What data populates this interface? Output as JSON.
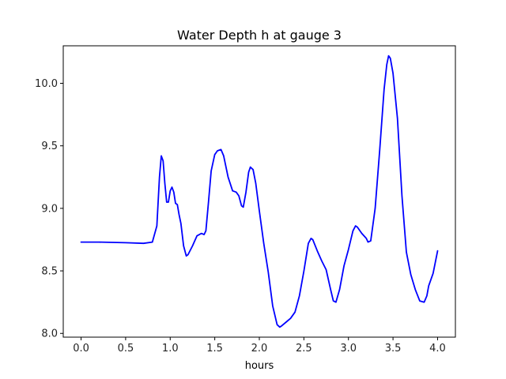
{
  "chart_data": {
    "type": "line",
    "title": "Water Depth h at gauge 3",
    "xlabel": "hours",
    "ylabel": "",
    "xlim": [
      -0.2,
      4.2
    ],
    "ylim": [
      7.97,
      10.3
    ],
    "xticks": [
      0.0,
      0.5,
      1.0,
      1.5,
      2.0,
      2.5,
      3.0,
      3.5,
      4.0
    ],
    "xtick_labels": [
      "0.0",
      "0.5",
      "1.0",
      "1.5",
      "2.0",
      "2.5",
      "3.0",
      "3.5",
      "4.0"
    ],
    "yticks": [
      8.0,
      8.5,
      9.0,
      9.5,
      10.0
    ],
    "ytick_labels": [
      "8.0",
      "8.5",
      "9.0",
      "9.5",
      "10.0"
    ],
    "grid": false,
    "legend": "none",
    "series": [
      {
        "color": "#0000ff",
        "x": [
          0.0,
          0.2,
          0.5,
          0.7,
          0.8,
          0.85,
          0.88,
          0.9,
          0.92,
          0.94,
          0.96,
          0.98,
          1.0,
          1.02,
          1.04,
          1.06,
          1.08,
          1.1,
          1.12,
          1.15,
          1.18,
          1.2,
          1.25,
          1.3,
          1.35,
          1.38,
          1.4,
          1.43,
          1.46,
          1.5,
          1.53,
          1.57,
          1.6,
          1.65,
          1.7,
          1.74,
          1.77,
          1.8,
          1.82,
          1.85,
          1.88,
          1.9,
          1.93,
          1.96,
          2.0,
          2.05,
          2.1,
          2.15,
          2.2,
          2.23,
          2.25,
          2.3,
          2.35,
          2.4,
          2.45,
          2.5,
          2.55,
          2.58,
          2.6,
          2.65,
          2.7,
          2.75,
          2.8,
          2.83,
          2.86,
          2.9,
          2.95,
          3.0,
          3.05,
          3.08,
          3.1,
          3.15,
          3.2,
          3.22,
          3.25,
          3.3,
          3.35,
          3.4,
          3.43,
          3.45,
          3.47,
          3.5,
          3.55,
          3.6,
          3.65,
          3.7,
          3.75,
          3.8,
          3.85,
          3.88,
          3.9,
          3.95,
          4.0
        ],
        "y": [
          8.73,
          8.73,
          8.725,
          8.72,
          8.73,
          8.86,
          9.25,
          9.42,
          9.38,
          9.2,
          9.05,
          9.05,
          9.14,
          9.17,
          9.13,
          9.04,
          9.03,
          8.95,
          8.88,
          8.7,
          8.62,
          8.63,
          8.7,
          8.78,
          8.8,
          8.79,
          8.82,
          9.05,
          9.3,
          9.43,
          9.46,
          9.47,
          9.42,
          9.25,
          9.14,
          9.13,
          9.1,
          9.02,
          9.01,
          9.13,
          9.29,
          9.33,
          9.31,
          9.2,
          8.98,
          8.72,
          8.49,
          8.22,
          8.07,
          8.05,
          8.06,
          8.09,
          8.12,
          8.17,
          8.3,
          8.5,
          8.72,
          8.76,
          8.75,
          8.66,
          8.58,
          8.51,
          8.35,
          8.26,
          8.25,
          8.35,
          8.54,
          8.67,
          8.82,
          8.86,
          8.85,
          8.8,
          8.76,
          8.73,
          8.74,
          9.0,
          9.46,
          9.95,
          10.15,
          10.22,
          10.2,
          10.08,
          9.72,
          9.1,
          8.65,
          8.47,
          8.35,
          8.26,
          8.25,
          8.3,
          8.38,
          8.48,
          8.66
        ]
      }
    ]
  }
}
